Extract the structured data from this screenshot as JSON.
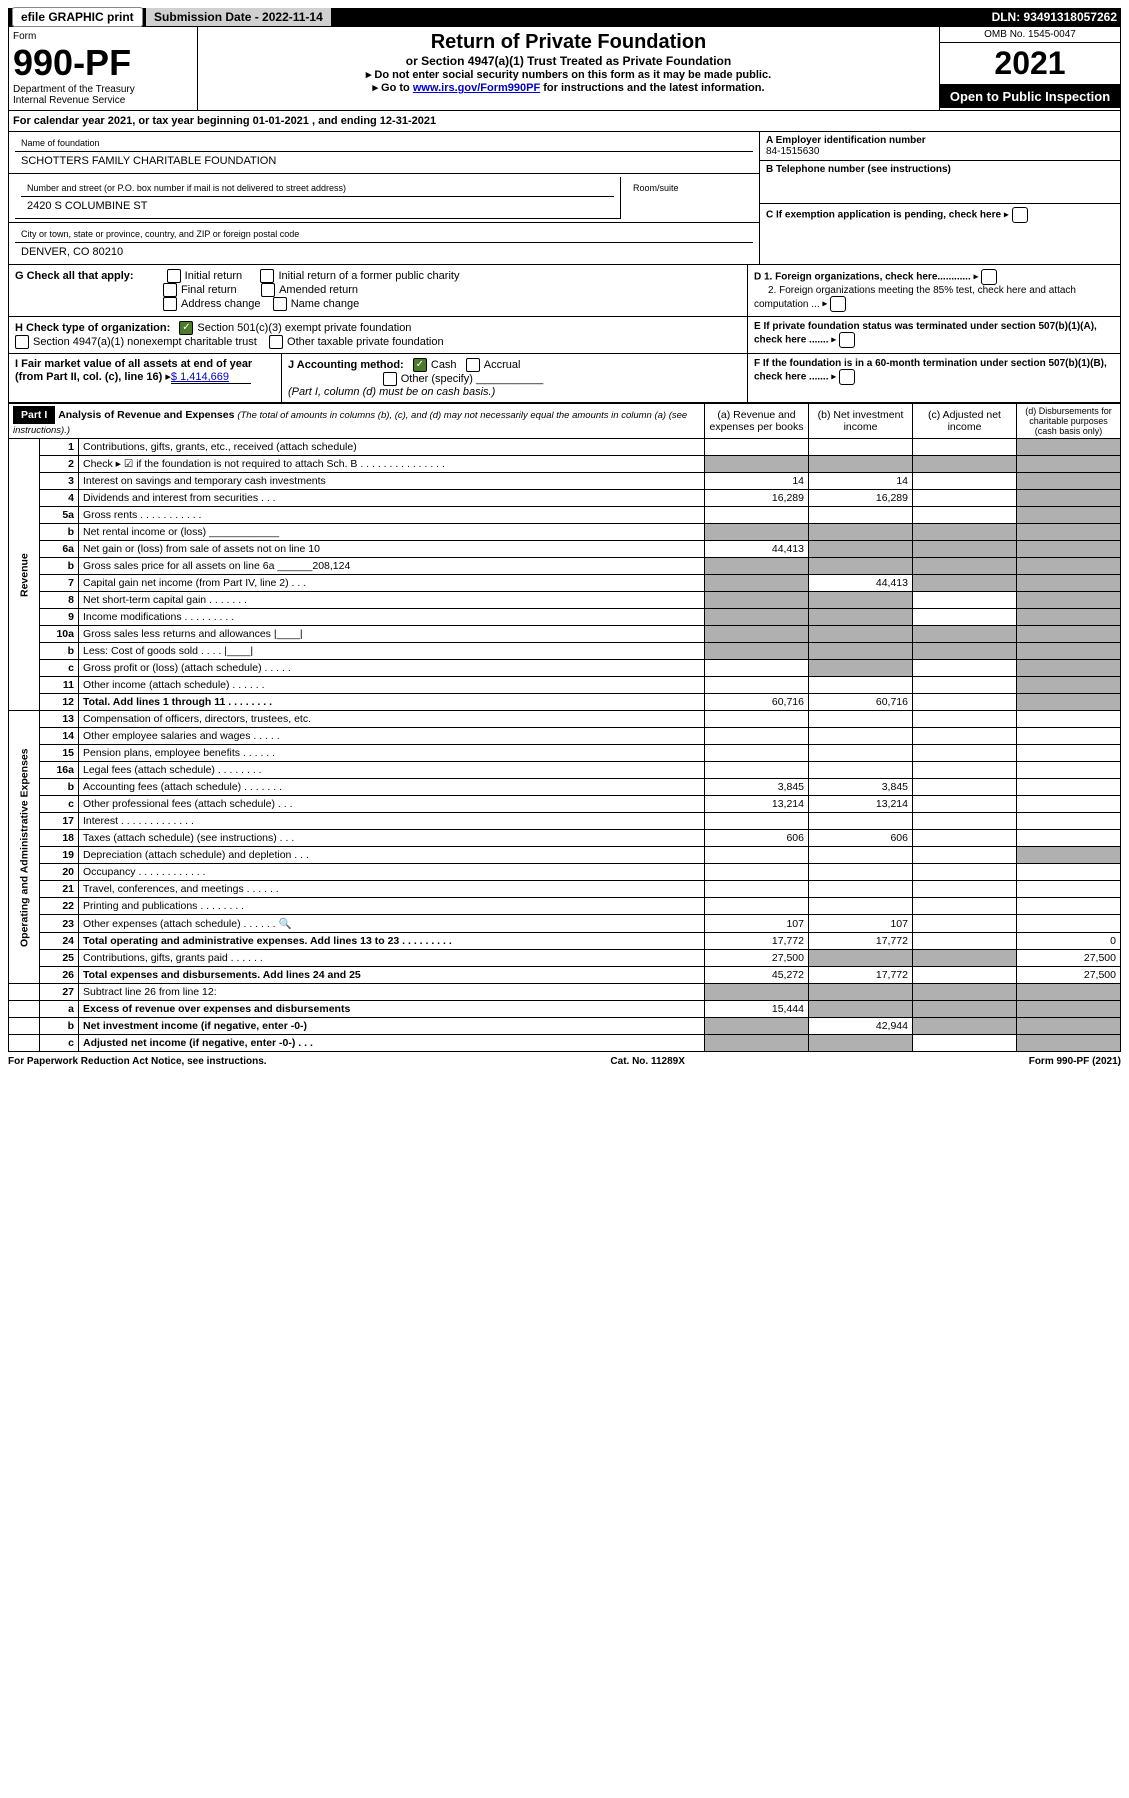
{
  "top": {
    "efile": "efile GRAPHIC print",
    "sub_label": "Submission Date - 2022-11-14",
    "dln": "DLN: 93491318057262"
  },
  "header": {
    "form_word": "Form",
    "form_num": "990-PF",
    "dept": "Department of the Treasury\nInternal Revenue Service",
    "title": "Return of Private Foundation",
    "sub": "or Section 4947(a)(1) Trust Treated as Private Foundation",
    "note1": "▸ Do not enter social security numbers on this form as it may be made public.",
    "note2_pre": "▸ Go to ",
    "note2_link": "www.irs.gov/Form990PF",
    "note2_post": " for instructions and the latest information.",
    "omb": "OMB No. 1545-0047",
    "year": "2021",
    "open": "Open to Public Inspection"
  },
  "cal": "For calendar year 2021, or tax year beginning 01-01-2021           , and ending 12-31-2021",
  "entity": {
    "name_label": "Name of foundation",
    "name": "SCHOTTERS FAMILY CHARITABLE FOUNDATION",
    "addr_label": "Number and street (or P.O. box number if mail is not delivered to street address)",
    "room_label": "Room/suite",
    "addr": "2420 S COLUMBINE ST",
    "city_label": "City or town, state or province, country, and ZIP or foreign postal code",
    "city": "DENVER, CO  80210",
    "a": "A Employer identification number",
    "a_val": "84-1515630",
    "b": "B Telephone number (see instructions)",
    "c": "C If exemption application is pending, check here",
    "d1": "D 1. Foreign organizations, check here............",
    "d2": "2. Foreign organizations meeting the 85% test, check here and attach computation ...",
    "e": "E If private foundation status was terminated under section 507(b)(1)(A), check here .......",
    "f": "F If the foundation is in a 60-month termination under section 507(b)(1)(B), check here ......."
  },
  "g": {
    "label": "G Check all that apply:",
    "opts": [
      "Initial return",
      "Final return",
      "Address change",
      "Initial return of a former public charity",
      "Amended return",
      "Name change"
    ]
  },
  "h": {
    "label": "H Check type of organization:",
    "opt1": "Section 501(c)(3) exempt private foundation",
    "opt2": "Section 4947(a)(1) nonexempt charitable trust",
    "opt3": "Other taxable private foundation"
  },
  "i": {
    "label": "I Fair market value of all assets at end of year (from Part II, col. (c), line 16)",
    "val": "$  1,414,669"
  },
  "j": {
    "label": "J Accounting method:",
    "cash": "Cash",
    "accrual": "Accrual",
    "other": "Other (specify)",
    "note": "(Part I, column (d) must be on cash basis.)"
  },
  "part1": {
    "label": "Part I",
    "title": "Analysis of Revenue and Expenses",
    "note": "(The total of amounts in columns (b), (c), and (d) may not necessarily equal the amounts in column (a) (see instructions).)",
    "col_a": "(a) Revenue and expenses per books",
    "col_b": "(b) Net investment income",
    "col_c": "(c) Adjusted net income",
    "col_d": "(d) Disbursements for charitable purposes (cash basis only)"
  },
  "sections": {
    "revenue": "Revenue",
    "expenses": "Operating and Administrative Expenses"
  },
  "lines": [
    {
      "n": "1",
      "d": "Contributions, gifts, grants, etc., received (attach schedule)",
      "a": "",
      "b": "",
      "c": "",
      "dd": "",
      "c_sh": false,
      "d_sh": true
    },
    {
      "n": "2",
      "d": "Check ▸ ☑ if the foundation is not required to attach Sch. B   .  .  .  .  .  .  .  .  .  .  .  .  .  .  .",
      "a": "",
      "b": "",
      "c": "",
      "dd": "",
      "a_sh": true,
      "b_sh": true,
      "c_sh": true,
      "d_sh": true
    },
    {
      "n": "3",
      "d": "Interest on savings and temporary cash investments",
      "a": "14",
      "b": "14",
      "c": "",
      "dd": "",
      "d_sh": true
    },
    {
      "n": "4",
      "d": "Dividends and interest from securities   .   .   .",
      "a": "16,289",
      "b": "16,289",
      "c": "",
      "dd": "",
      "d_sh": true
    },
    {
      "n": "5a",
      "d": "Gross rents   .   .   .   .   .   .   .   .   .   .   .",
      "a": "",
      "b": "",
      "c": "",
      "dd": "",
      "d_sh": true
    },
    {
      "n": "b",
      "d": "Net rental income or (loss) ____________",
      "a": "",
      "b": "",
      "c": "",
      "dd": "",
      "a_sh": true,
      "b_sh": true,
      "c_sh": true,
      "d_sh": true
    },
    {
      "n": "6a",
      "d": "Net gain or (loss) from sale of assets not on line 10",
      "a": "44,413",
      "b": "",
      "c": "",
      "dd": "",
      "b_sh": true,
      "c_sh": true,
      "d_sh": true
    },
    {
      "n": "b",
      "d": "Gross sales price for all assets on line 6a ______208,124",
      "a": "",
      "b": "",
      "c": "",
      "dd": "",
      "a_sh": true,
      "b_sh": true,
      "c_sh": true,
      "d_sh": true
    },
    {
      "n": "7",
      "d": "Capital gain net income (from Part IV, line 2)   .   .   .",
      "a": "",
      "b": "44,413",
      "c": "",
      "dd": "",
      "a_sh": true,
      "c_sh": true,
      "d_sh": true
    },
    {
      "n": "8",
      "d": "Net short-term capital gain   .   .   .   .   .   .   .",
      "a": "",
      "b": "",
      "c": "",
      "dd": "",
      "a_sh": true,
      "b_sh": true,
      "d_sh": true
    },
    {
      "n": "9",
      "d": "Income modifications   .   .   .   .   .   .   .   .   .",
      "a": "",
      "b": "",
      "c": "",
      "dd": "",
      "a_sh": true,
      "b_sh": true,
      "d_sh": true
    },
    {
      "n": "10a",
      "d": "Gross sales less returns and allowances  |____|",
      "a": "",
      "b": "",
      "c": "",
      "dd": "",
      "a_sh": true,
      "b_sh": true,
      "c_sh": true,
      "d_sh": true
    },
    {
      "n": "b",
      "d": "Less: Cost of goods sold    .   .   .   .  |____|",
      "a": "",
      "b": "",
      "c": "",
      "dd": "",
      "a_sh": true,
      "b_sh": true,
      "c_sh": true,
      "d_sh": true
    },
    {
      "n": "c",
      "d": "Gross profit or (loss) (attach schedule)   .   .   .   .   .",
      "a": "",
      "b": "",
      "c": "",
      "dd": "",
      "b_sh": true,
      "d_sh": true
    },
    {
      "n": "11",
      "d": "Other income (attach schedule)   .   .   .   .   .   .",
      "a": "",
      "b": "",
      "c": "",
      "dd": "",
      "d_sh": true
    },
    {
      "n": "12",
      "d": "Total. Add lines 1 through 11   .   .   .   .   .   .   .   .",
      "a": "60,716",
      "b": "60,716",
      "c": "",
      "dd": "",
      "bold": true,
      "d_sh": true
    }
  ],
  "exp_lines": [
    {
      "n": "13",
      "d": "Compensation of officers, directors, trustees, etc.",
      "a": "",
      "b": "",
      "c": "",
      "dd": ""
    },
    {
      "n": "14",
      "d": "Other employee salaries and wages   .   .   .   .   .",
      "a": "",
      "b": "",
      "c": "",
      "dd": ""
    },
    {
      "n": "15",
      "d": "Pension plans, employee benefits   .   .   .   .   .   .",
      "a": "",
      "b": "",
      "c": "",
      "dd": ""
    },
    {
      "n": "16a",
      "d": "Legal fees (attach schedule)   .   .   .   .   .   .   .   .",
      "a": "",
      "b": "",
      "c": "",
      "dd": ""
    },
    {
      "n": "b",
      "d": "Accounting fees (attach schedule)   .   .   .   .   .   .   .",
      "a": "3,845",
      "b": "3,845",
      "c": "",
      "dd": ""
    },
    {
      "n": "c",
      "d": "Other professional fees (attach schedule)   .   .   .",
      "a": "13,214",
      "b": "13,214",
      "c": "",
      "dd": ""
    },
    {
      "n": "17",
      "d": "Interest   .   .   .   .   .   .   .   .   .   .   .   .   .",
      "a": "",
      "b": "",
      "c": "",
      "dd": ""
    },
    {
      "n": "18",
      "d": "Taxes (attach schedule) (see instructions)   .   .   .",
      "a": "606",
      "b": "606",
      "c": "",
      "dd": ""
    },
    {
      "n": "19",
      "d": "Depreciation (attach schedule) and depletion   .   .   .",
      "a": "",
      "b": "",
      "c": "",
      "dd": "",
      "d_sh": true
    },
    {
      "n": "20",
      "d": "Occupancy   .   .   .   .   .   .   .   .   .   .   .   .",
      "a": "",
      "b": "",
      "c": "",
      "dd": ""
    },
    {
      "n": "21",
      "d": "Travel, conferences, and meetings   .   .   .   .   .   .",
      "a": "",
      "b": "",
      "c": "",
      "dd": ""
    },
    {
      "n": "22",
      "d": "Printing and publications   .   .   .   .   .   .   .   .",
      "a": "",
      "b": "",
      "c": "",
      "dd": ""
    },
    {
      "n": "23",
      "d": "Other expenses (attach schedule)   .   .   .   .   .   .   🔍",
      "a": "107",
      "b": "107",
      "c": "",
      "dd": ""
    },
    {
      "n": "24",
      "d": "Total operating and administrative expenses. Add lines 13 to 23   .   .   .   .   .   .   .   .   .",
      "a": "17,772",
      "b": "17,772",
      "c": "",
      "dd": "0",
      "bold": true
    },
    {
      "n": "25",
      "d": "Contributions, gifts, grants paid   .   .   .   .   .   .",
      "a": "27,500",
      "b": "",
      "c": "",
      "dd": "27,500",
      "b_sh": true,
      "c_sh": true
    },
    {
      "n": "26",
      "d": "Total expenses and disbursements. Add lines 24 and 25",
      "a": "45,272",
      "b": "17,772",
      "c": "",
      "dd": "27,500",
      "bold": true
    }
  ],
  "net_lines": [
    {
      "n": "27",
      "d": "Subtract line 26 from line 12:",
      "a": "",
      "b": "",
      "c": "",
      "dd": "",
      "a_sh": true,
      "b_sh": true,
      "c_sh": true,
      "d_sh": true
    },
    {
      "n": "a",
      "d": "Excess of revenue over expenses and disbursements",
      "a": "15,444",
      "b": "",
      "c": "",
      "dd": "",
      "bold": true,
      "b_sh": true,
      "c_sh": true,
      "d_sh": true
    },
    {
      "n": "b",
      "d": "Net investment income (if negative, enter -0-)",
      "a": "",
      "b": "42,944",
      "c": "",
      "dd": "",
      "bold": true,
      "a_sh": true,
      "c_sh": true,
      "d_sh": true
    },
    {
      "n": "c",
      "d": "Adjusted net income (if negative, enter -0-)   .   .   .",
      "a": "",
      "b": "",
      "c": "",
      "dd": "",
      "bold": true,
      "a_sh": true,
      "b_sh": true,
      "d_sh": true
    }
  ],
  "footer": {
    "left": "For Paperwork Reduction Act Notice, see instructions.",
    "mid": "Cat. No. 11289X",
    "right": "Form 990-PF (2021)"
  }
}
